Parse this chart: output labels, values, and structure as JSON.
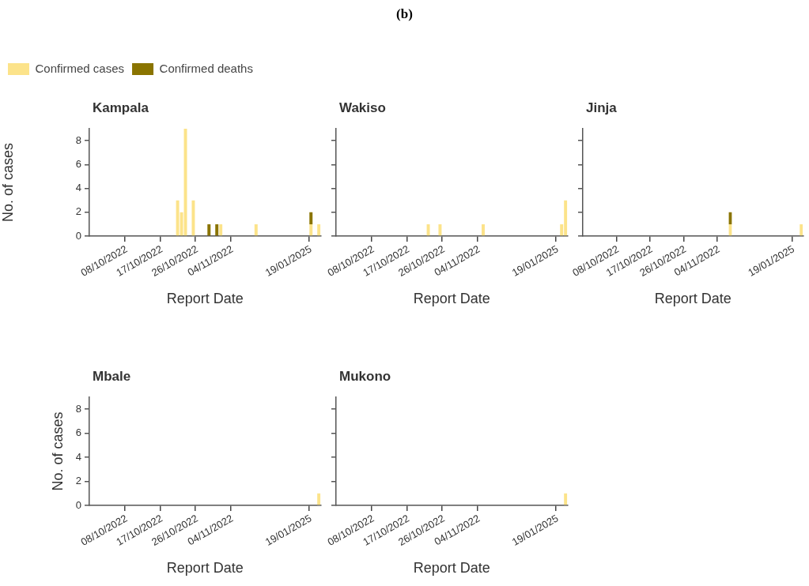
{
  "chart_data": [
    {
      "type": "bar",
      "title": "Kampala",
      "xlabel": "Report Date",
      "ylabel": "No. of cases",
      "annotations": [
        "(b)"
      ],
      "legend": "top left",
      "stacked": true,
      "ylim": [
        0,
        9
      ],
      "yticks": [
        0,
        2,
        4,
        6,
        8
      ],
      "categories": [
        null,
        null,
        null,
        null,
        null,
        null,
        null,
        null,
        null,
        "08/10/2022",
        null,
        null,
        null,
        null,
        null,
        null,
        null,
        null,
        "17/10/2022",
        null,
        null,
        null,
        null,
        null,
        null,
        null,
        null,
        "26/10/2022",
        null,
        null,
        null,
        null,
        null,
        null,
        null,
        null,
        "04/11/2022",
        null,
        null,
        null,
        null,
        null,
        null,
        null,
        null,
        null,
        null,
        null,
        null,
        null,
        null,
        null,
        null,
        null,
        null,
        null,
        "19/01/2025",
        null,
        null
      ],
      "series": [
        {
          "name": "Confirmed cases",
          "color": "#fce38a",
          "values": [
            0,
            0,
            0,
            0,
            0,
            0,
            0,
            0,
            0,
            0,
            0,
            0,
            0,
            0,
            0,
            0,
            0,
            0,
            0,
            0,
            0,
            0,
            3,
            2,
            9,
            0,
            3,
            0,
            0,
            0,
            0,
            0,
            0,
            1,
            0,
            0,
            0,
            0,
            0,
            0,
            0,
            0,
            1,
            0,
            0,
            0,
            0,
            0,
            0,
            0,
            0,
            0,
            0,
            0,
            0,
            0,
            1,
            0,
            1
          ]
        },
        {
          "name": "Confirmed deaths",
          "color": "#8a7400",
          "values": [
            0,
            0,
            0,
            0,
            0,
            0,
            0,
            0,
            0,
            0,
            0,
            0,
            0,
            0,
            0,
            0,
            0,
            0,
            0,
            0,
            0,
            0,
            0,
            0,
            0,
            0,
            0,
            0,
            0,
            0,
            1,
            0,
            1,
            0,
            0,
            0,
            0,
            0,
            0,
            0,
            0,
            0,
            0,
            0,
            0,
            0,
            0,
            0,
            0,
            0,
            0,
            0,
            0,
            0,
            0,
            0,
            1,
            0,
            0
          ]
        }
      ]
    },
    {
      "type": "bar",
      "title": "Wakiso",
      "xlabel": "Report Date",
      "tick_labels": "x",
      "stacked": true,
      "ylim": [
        0,
        9
      ],
      "yticks": [
        0,
        2,
        4,
        6,
        8
      ],
      "categories": [
        null,
        null,
        null,
        null,
        null,
        null,
        null,
        null,
        null,
        "08/10/2022",
        null,
        null,
        null,
        null,
        null,
        null,
        null,
        null,
        "17/10/2022",
        null,
        null,
        null,
        null,
        null,
        null,
        null,
        null,
        "26/10/2022",
        null,
        null,
        null,
        null,
        null,
        null,
        null,
        null,
        "04/11/2022",
        null,
        null,
        null,
        null,
        null,
        null,
        null,
        null,
        null,
        null,
        null,
        null,
        null,
        null,
        null,
        null,
        null,
        null,
        null,
        "19/01/2025",
        null,
        null
      ],
      "series": [
        {
          "color": "#fce38a",
          "values": [
            0,
            0,
            0,
            0,
            0,
            0,
            0,
            0,
            0,
            0,
            0,
            0,
            0,
            0,
            0,
            0,
            0,
            0,
            0,
            0,
            0,
            0,
            0,
            1,
            0,
            0,
            1,
            0,
            0,
            0,
            0,
            0,
            0,
            0,
            0,
            0,
            0,
            1,
            0,
            0,
            0,
            0,
            0,
            0,
            0,
            0,
            0,
            0,
            0,
            0,
            0,
            0,
            0,
            0,
            0,
            0,
            0,
            1,
            3
          ]
        }
      ]
    },
    {
      "type": "bar",
      "title": "Jinja",
      "xlabel": "Report Date",
      "tick_labels": "x",
      "stacked": true,
      "ylim": [
        0,
        9
      ],
      "yticks": [
        0,
        2,
        4,
        6,
        8
      ],
      "categories": [
        null,
        null,
        null,
        null,
        null,
        null,
        null,
        null,
        null,
        "08/10/2022",
        null,
        null,
        null,
        null,
        null,
        null,
        null,
        null,
        "17/10/2022",
        null,
        null,
        null,
        null,
        null,
        null,
        null,
        null,
        "26/10/2022",
        null,
        null,
        null,
        null,
        null,
        null,
        null,
        null,
        "04/11/2022",
        null,
        null,
        null,
        null,
        null,
        null,
        null,
        null,
        null,
        null,
        null,
        null,
        null,
        null,
        null,
        null,
        null,
        null,
        null,
        "19/01/2025",
        null,
        null
      ],
      "series": [
        {
          "color": "#fce38a",
          "values": [
            0,
            0,
            0,
            0,
            0,
            0,
            0,
            0,
            0,
            0,
            0,
            0,
            0,
            0,
            0,
            0,
            0,
            0,
            0,
            0,
            0,
            0,
            0,
            0,
            0,
            0,
            0,
            0,
            0,
            0,
            0,
            0,
            0,
            0,
            0,
            0,
            0,
            0,
            0,
            1,
            0,
            0,
            0,
            0,
            0,
            0,
            0,
            0,
            0,
            0,
            0,
            0,
            0,
            0,
            0,
            0,
            0,
            0,
            1
          ]
        },
        {
          "color": "#8a7400",
          "values": [
            0,
            0,
            0,
            0,
            0,
            0,
            0,
            0,
            0,
            0,
            0,
            0,
            0,
            0,
            0,
            0,
            0,
            0,
            0,
            0,
            0,
            0,
            0,
            0,
            0,
            0,
            0,
            0,
            0,
            0,
            0,
            0,
            0,
            0,
            0,
            0,
            0,
            0,
            0,
            1,
            0,
            0,
            0,
            0,
            0,
            0,
            0,
            0,
            0,
            0,
            0,
            0,
            0,
            0,
            0,
            0,
            0,
            0,
            0
          ]
        }
      ]
    },
    {
      "type": "bar",
      "title": "Mbale",
      "xlabel": "Report Date",
      "ylabel": "No. of cases",
      "stacked": true,
      "ylim": [
        0,
        9
      ],
      "yticks": [
        0,
        2,
        4,
        6,
        8
      ],
      "categories": [
        null,
        null,
        null,
        null,
        null,
        null,
        null,
        null,
        null,
        "08/10/2022",
        null,
        null,
        null,
        null,
        null,
        null,
        null,
        null,
        "17/10/2022",
        null,
        null,
        null,
        null,
        null,
        null,
        null,
        null,
        "26/10/2022",
        null,
        null,
        null,
        null,
        null,
        null,
        null,
        null,
        "04/11/2022",
        null,
        null,
        null,
        null,
        null,
        null,
        null,
        null,
        null,
        null,
        null,
        null,
        null,
        null,
        null,
        null,
        null,
        null,
        null,
        "19/01/2025",
        null,
        null
      ],
      "series": [
        {
          "color": "#fce38a",
          "values": [
            0,
            0,
            0,
            0,
            0,
            0,
            0,
            0,
            0,
            0,
            0,
            0,
            0,
            0,
            0,
            0,
            0,
            0,
            0,
            0,
            0,
            0,
            0,
            0,
            0,
            0,
            0,
            0,
            0,
            0,
            0,
            0,
            0,
            0,
            0,
            0,
            0,
            0,
            0,
            0,
            0,
            0,
            0,
            0,
            0,
            0,
            0,
            0,
            0,
            0,
            0,
            0,
            0,
            0,
            0,
            0,
            0,
            0,
            1
          ]
        }
      ]
    },
    {
      "type": "bar",
      "title": "Mukono",
      "xlabel": "Report Date",
      "tick_labels": "x",
      "stacked": true,
      "ylim": [
        0,
        9
      ],
      "yticks": [
        0,
        2,
        4,
        6,
        8
      ],
      "categories": [
        null,
        null,
        null,
        null,
        null,
        null,
        null,
        null,
        null,
        "08/10/2022",
        null,
        null,
        null,
        null,
        null,
        null,
        null,
        null,
        "17/10/2022",
        null,
        null,
        null,
        null,
        null,
        null,
        null,
        null,
        "26/10/2022",
        null,
        null,
        null,
        null,
        null,
        null,
        null,
        null,
        "04/11/2022",
        null,
        null,
        null,
        null,
        null,
        null,
        null,
        null,
        null,
        null,
        null,
        null,
        null,
        null,
        null,
        null,
        null,
        null,
        null,
        "19/01/2025",
        null,
        null
      ],
      "series": [
        {
          "color": "#fce38a",
          "values": [
            0,
            0,
            0,
            0,
            0,
            0,
            0,
            0,
            0,
            0,
            0,
            0,
            0,
            0,
            0,
            0,
            0,
            0,
            0,
            0,
            0,
            0,
            0,
            0,
            0,
            0,
            0,
            0,
            0,
            0,
            0,
            0,
            0,
            0,
            0,
            0,
            0,
            0,
            0,
            0,
            0,
            0,
            0,
            0,
            0,
            0,
            0,
            0,
            0,
            0,
            0,
            0,
            0,
            0,
            0,
            0,
            0,
            0,
            1
          ]
        }
      ]
    }
  ]
}
